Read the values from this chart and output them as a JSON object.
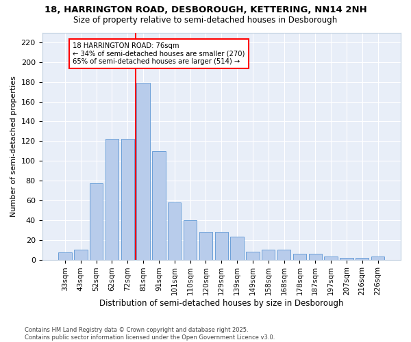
{
  "title1": "18, HARRINGTON ROAD, DESBOROUGH, KETTERING, NN14 2NH",
  "title2": "Size of property relative to semi-detached houses in Desborough",
  "xlabel": "Distribution of semi-detached houses by size in Desborough",
  "ylabel": "Number of semi-detached properties",
  "categories": [
    "33sqm",
    "43sqm",
    "52sqm",
    "62sqm",
    "72sqm",
    "81sqm",
    "91sqm",
    "101sqm",
    "110sqm",
    "120sqm",
    "129sqm",
    "139sqm",
    "149sqm",
    "158sqm",
    "168sqm",
    "178sqm",
    "187sqm",
    "197sqm",
    "207sqm",
    "216sqm",
    "226sqm"
  ],
  "values": [
    7,
    10,
    77,
    122,
    122,
    179,
    110,
    58,
    40,
    28,
    28,
    23,
    8,
    10,
    10,
    6,
    6,
    3,
    2,
    2,
    3
  ],
  "bar_color": "#b8cceb",
  "bar_edge_color": "#6a9fd8",
  "vline_x": 4.5,
  "annotation_text": "18 HARRINGTON ROAD: 76sqm\n← 34% of semi-detached houses are smaller (270)\n65% of semi-detached houses are larger (514) →",
  "footer": "Contains HM Land Registry data © Crown copyright and database right 2025.\nContains public sector information licensed under the Open Government Licence v3.0.",
  "bg_color": "#e8eef8",
  "ylim": [
    0,
    230
  ],
  "yticks": [
    0,
    20,
    40,
    60,
    80,
    100,
    120,
    140,
    160,
    180,
    200,
    220
  ]
}
